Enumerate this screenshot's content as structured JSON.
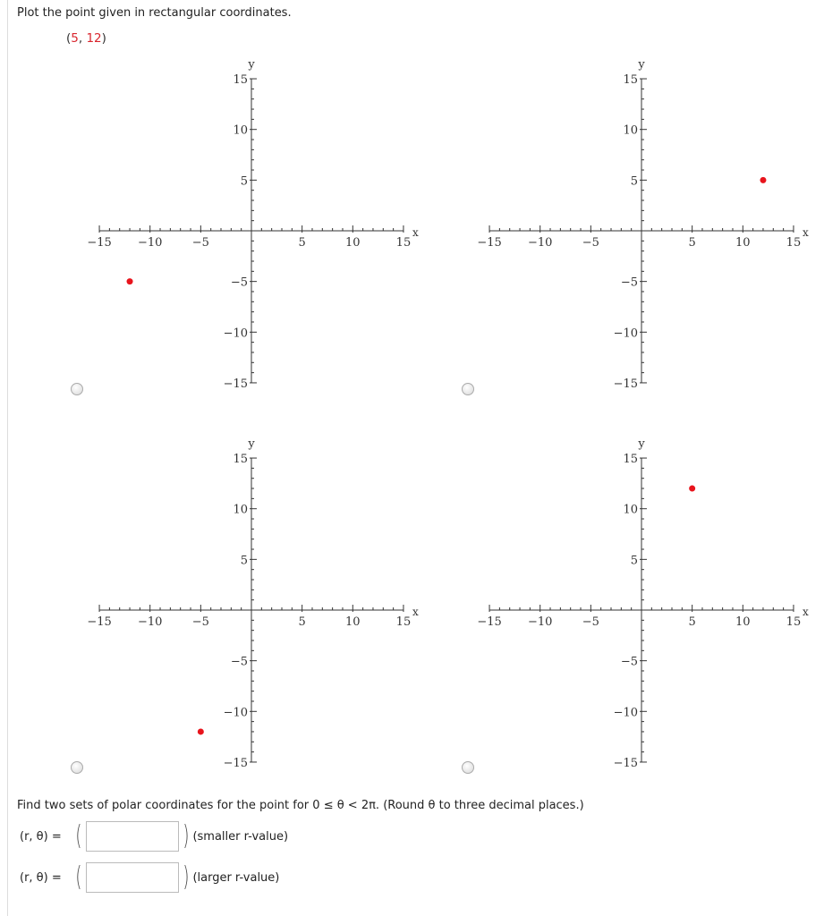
{
  "prompt": "Plot the point given in rectangular coordinates.",
  "point": {
    "open": "(",
    "x": "5",
    "sep": ", ",
    "y": "12",
    "close": ")"
  },
  "colors": {
    "point": "#e8141c",
    "highlight": "#d9262e"
  },
  "chart_data": [
    {
      "type": "scatter",
      "xlabel": "x",
      "ylabel": "y",
      "xlim": [
        -15,
        15
      ],
      "ylim": [
        -15,
        15
      ],
      "ticks": [
        -15,
        -10,
        -5,
        5,
        10,
        15
      ],
      "points": [
        [
          -12,
          -5
        ]
      ],
      "option": "radio-1"
    },
    {
      "type": "scatter",
      "xlabel": "x",
      "ylabel": "y",
      "xlim": [
        -15,
        15
      ],
      "ylim": [
        -15,
        15
      ],
      "ticks": [
        -15,
        -10,
        -5,
        5,
        10,
        15
      ],
      "points": [
        [
          12,
          5
        ]
      ],
      "option": "radio-2"
    },
    {
      "type": "scatter",
      "xlabel": "x",
      "ylabel": "y",
      "xlim": [
        -15,
        15
      ],
      "ylim": [
        -15,
        15
      ],
      "ticks": [
        -15,
        -10,
        -5,
        5,
        10,
        15
      ],
      "points": [
        [
          -5,
          -12
        ]
      ],
      "option": "radio-3"
    },
    {
      "type": "scatter",
      "xlabel": "x",
      "ylabel": "y",
      "xlim": [
        -15,
        15
      ],
      "ylim": [
        -15,
        15
      ],
      "ticks": [
        -15,
        -10,
        -5,
        5,
        10,
        15
      ],
      "points": [
        [
          5,
          12
        ]
      ],
      "option": "radio-4"
    }
  ],
  "question": {
    "text": "Find two sets of polar coordinates for the point for  0 ≤ θ < 2π.  (Round θ to three decimal places.)",
    "rows": [
      {
        "label": "(r, θ)  =",
        "value": "",
        "note": "(smaller r-value)"
      },
      {
        "label": "(r, θ)  =",
        "value": "",
        "note": "(larger r-value)"
      }
    ]
  }
}
